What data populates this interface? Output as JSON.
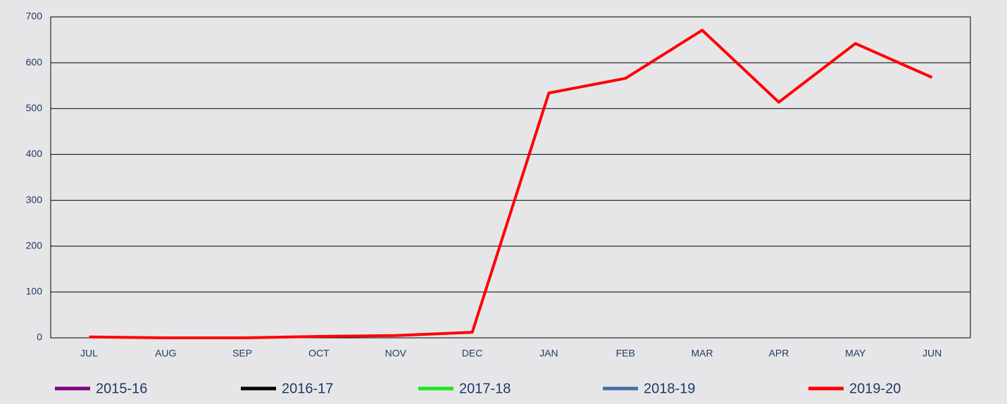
{
  "chart_data": {
    "type": "line",
    "categories": [
      "JUL",
      "AUG",
      "SEP",
      "OCT",
      "NOV",
      "DEC",
      "JAN",
      "FEB",
      "MAR",
      "APR",
      "MAY",
      "JUN"
    ],
    "series": [
      {
        "name": "2015-16",
        "color": "#800080",
        "values": [
          null,
          null,
          null,
          null,
          null,
          null,
          null,
          null,
          null,
          null,
          null,
          null
        ]
      },
      {
        "name": "2016-17",
        "color": "#000000",
        "values": [
          null,
          null,
          null,
          null,
          null,
          null,
          null,
          null,
          null,
          null,
          null,
          null
        ]
      },
      {
        "name": "2017-18",
        "color": "#1ee61e",
        "values": [
          null,
          null,
          null,
          null,
          null,
          null,
          null,
          null,
          null,
          null,
          null,
          null
        ]
      },
      {
        "name": "2018-19",
        "color": "#4a6fa5",
        "values": [
          null,
          null,
          null,
          null,
          null,
          null,
          null,
          null,
          null,
          null,
          null,
          null
        ]
      },
      {
        "name": "2019-20",
        "color": "#ff0000",
        "values": [
          2,
          0,
          0,
          3,
          5,
          12,
          534,
          566,
          671,
          514,
          642,
          568
        ]
      }
    ],
    "ylim": [
      0,
      700
    ],
    "yticks": [
      0,
      100,
      200,
      300,
      400,
      500,
      600,
      700
    ],
    "grid": true
  }
}
